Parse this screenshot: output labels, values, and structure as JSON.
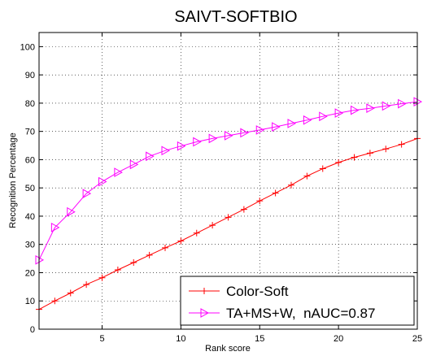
{
  "chart_data": {
    "type": "line",
    "title": "SAIVT-SOFTBIO",
    "xlabel": "Rank score",
    "ylabel": "Recognition Percentage",
    "xlim": [
      1,
      25
    ],
    "ylim": [
      0,
      105
    ],
    "xticks": [
      5,
      10,
      15,
      20,
      25
    ],
    "yticks": [
      0,
      10,
      20,
      30,
      40,
      50,
      60,
      70,
      80,
      90,
      100
    ],
    "grid": true,
    "legend_position": "bottom-right",
    "x": [
      1,
      2,
      3,
      4,
      5,
      6,
      7,
      8,
      9,
      10,
      11,
      12,
      13,
      14,
      15,
      16,
      17,
      18,
      19,
      20,
      21,
      22,
      23,
      24,
      25
    ],
    "series": [
      {
        "name": "Color-Soft",
        "color": "#ff0000",
        "marker": "plus",
        "values": [
          7,
          10,
          12.8,
          15.8,
          18.2,
          21,
          23.6,
          26.2,
          28.8,
          31.2,
          34,
          36.8,
          39.6,
          42.4,
          45.4,
          48.2,
          51,
          54.2,
          56.8,
          59,
          60.8,
          62.3,
          63.8,
          65.4,
          67.5
        ]
      },
      {
        "name": "TA+MS+W,  nAUC=0.87",
        "color": "#ff00ff",
        "marker": "triangle-right",
        "values": [
          24.5,
          36,
          41.5,
          48,
          52.2,
          55.5,
          58.3,
          61.2,
          63.2,
          64.8,
          66.3,
          67.5,
          68.5,
          69.5,
          70.5,
          71.6,
          72.8,
          74,
          75.3,
          76.5,
          77.5,
          78.2,
          79,
          79.8,
          80.5
        ]
      }
    ]
  }
}
